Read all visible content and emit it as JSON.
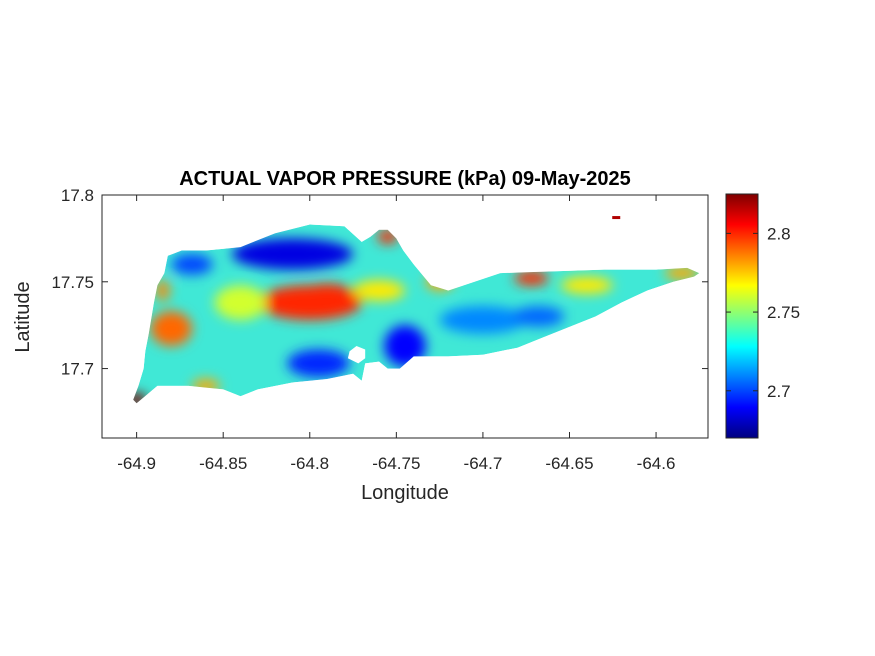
{
  "chart_data": {
    "type": "heatmap",
    "title": "ACTUAL VAPOR PRESSURE (kPa) 09-May-2025",
    "xlabel": "Longitude",
    "ylabel": "Latitude",
    "xlim": [
      -64.92,
      -64.57
    ],
    "ylim": [
      17.66,
      17.8
    ],
    "xticks": [
      -64.9,
      -64.85,
      -64.8,
      -64.75,
      -64.7,
      -64.65,
      -64.6
    ],
    "xtick_labels": [
      "-64.9",
      "-64.85",
      "-64.8",
      "-64.75",
      "-64.7",
      "-64.65",
      "-64.6"
    ],
    "yticks": [
      17.7,
      17.75,
      17.8
    ],
    "ytick_labels": [
      "17.7",
      "17.75",
      "17.8"
    ],
    "colorbar": {
      "limits": [
        2.67,
        2.825
      ],
      "ticks": [
        2.7,
        2.75,
        2.8
      ],
      "tick_labels": [
        "2.7",
        "2.75",
        "2.8"
      ],
      "colormap": "jet"
    },
    "outline": [
      [
        -64.9,
        17.68
      ],
      [
        -64.894,
        17.685
      ],
      [
        -64.888,
        17.69
      ],
      [
        -64.87,
        17.69
      ],
      [
        -64.85,
        17.688
      ],
      [
        -64.84,
        17.684
      ],
      [
        -64.83,
        17.688
      ],
      [
        -64.81,
        17.692
      ],
      [
        -64.79,
        17.694
      ],
      [
        -64.775,
        17.697
      ],
      [
        -64.77,
        17.693
      ],
      [
        -64.768,
        17.703
      ],
      [
        -64.76,
        17.704
      ],
      [
        -64.755,
        17.7
      ],
      [
        -64.748,
        17.7
      ],
      [
        -64.74,
        17.707
      ],
      [
        -64.72,
        17.707
      ],
      [
        -64.7,
        17.708
      ],
      [
        -64.68,
        17.712
      ],
      [
        -64.665,
        17.718
      ],
      [
        -64.65,
        17.724
      ],
      [
        -64.635,
        17.73
      ],
      [
        -64.62,
        17.738
      ],
      [
        -64.605,
        17.745
      ],
      [
        -64.59,
        17.75
      ],
      [
        -64.578,
        17.753
      ],
      [
        -64.575,
        17.755
      ],
      [
        -64.582,
        17.758
      ],
      [
        -64.6,
        17.757
      ],
      [
        -64.63,
        17.757
      ],
      [
        -64.66,
        17.756
      ],
      [
        -64.69,
        17.755
      ],
      [
        -64.72,
        17.745
      ],
      [
        -64.73,
        17.748
      ],
      [
        -64.74,
        17.76
      ],
      [
        -64.746,
        17.768
      ],
      [
        -64.75,
        17.775
      ],
      [
        -64.755,
        17.78
      ],
      [
        -64.76,
        17.78
      ],
      [
        -64.765,
        17.776
      ],
      [
        -64.77,
        17.773
      ],
      [
        -64.78,
        17.782
      ],
      [
        -64.8,
        17.783
      ],
      [
        -64.82,
        17.778
      ],
      [
        -64.84,
        17.77
      ],
      [
        -64.86,
        17.768
      ],
      [
        -64.874,
        17.768
      ],
      [
        -64.882,
        17.765
      ],
      [
        -64.884,
        17.755
      ],
      [
        -64.888,
        17.748
      ],
      [
        -64.89,
        17.738
      ],
      [
        -64.893,
        17.72
      ],
      [
        -64.895,
        17.71
      ],
      [
        -64.896,
        17.7
      ],
      [
        -64.899,
        17.69
      ],
      [
        -64.902,
        17.682
      ]
    ],
    "pond_outline": [
      [
        -64.778,
        17.706
      ],
      [
        -64.772,
        17.703
      ],
      [
        -64.768,
        17.706
      ],
      [
        -64.768,
        17.711
      ],
      [
        -64.773,
        17.713
      ],
      [
        -64.777,
        17.71
      ]
    ],
    "islet": [
      -64.623,
      17.787
    ],
    "value_field": [
      {
        "lon": -64.88,
        "lat": 17.723,
        "value": 2.79,
        "rx": 0.012,
        "ry": 0.01
      },
      {
        "lon": -64.8,
        "lat": 17.738,
        "value": 2.8,
        "rx": 0.03,
        "ry": 0.01
      },
      {
        "lon": -64.79,
        "lat": 17.743,
        "value": 2.8,
        "rx": 0.015,
        "ry": 0.006
      },
      {
        "lon": -64.81,
        "lat": 17.766,
        "value": 2.685,
        "rx": 0.035,
        "ry": 0.009
      },
      {
        "lon": -64.868,
        "lat": 17.76,
        "value": 2.7,
        "rx": 0.012,
        "ry": 0.006
      },
      {
        "lon": -64.745,
        "lat": 17.713,
        "value": 2.69,
        "rx": 0.012,
        "ry": 0.012
      },
      {
        "lon": -64.795,
        "lat": 17.703,
        "value": 2.695,
        "rx": 0.018,
        "ry": 0.008
      },
      {
        "lon": -64.84,
        "lat": 17.738,
        "value": 2.76,
        "rx": 0.015,
        "ry": 0.01
      },
      {
        "lon": -64.76,
        "lat": 17.745,
        "value": 2.77,
        "rx": 0.015,
        "ry": 0.006
      },
      {
        "lon": -64.725,
        "lat": 17.75,
        "value": 2.78,
        "rx": 0.008,
        "ry": 0.005
      },
      {
        "lon": -64.7,
        "lat": 17.728,
        "value": 2.71,
        "rx": 0.025,
        "ry": 0.008
      },
      {
        "lon": -64.668,
        "lat": 17.73,
        "value": 2.705,
        "rx": 0.015,
        "ry": 0.006
      },
      {
        "lon": -64.672,
        "lat": 17.752,
        "value": 2.8,
        "rx": 0.01,
        "ry": 0.004
      },
      {
        "lon": -64.64,
        "lat": 17.748,
        "value": 2.77,
        "rx": 0.015,
        "ry": 0.005
      },
      {
        "lon": -64.585,
        "lat": 17.755,
        "value": 2.78,
        "rx": 0.01,
        "ry": 0.004
      },
      {
        "lon": -64.9,
        "lat": 17.682,
        "value": 2.825,
        "rx": 0.006,
        "ry": 0.004
      },
      {
        "lon": -64.755,
        "lat": 17.776,
        "value": 2.8,
        "rx": 0.006,
        "ry": 0.004
      },
      {
        "lon": -64.86,
        "lat": 17.69,
        "value": 2.78,
        "rx": 0.008,
        "ry": 0.004
      },
      {
        "lon": -64.885,
        "lat": 17.745,
        "value": 2.785,
        "rx": 0.004,
        "ry": 0.006
      }
    ]
  }
}
